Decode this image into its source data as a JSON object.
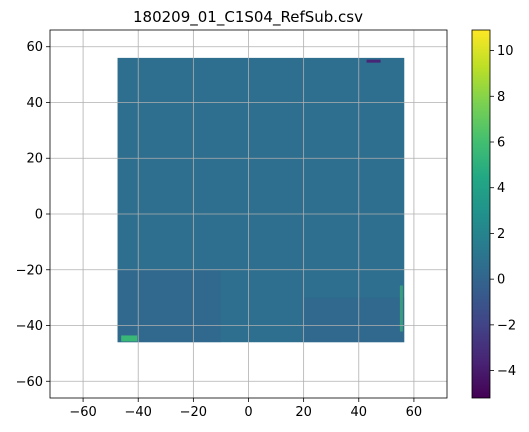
{
  "chart_data": {
    "type": "heatmap",
    "title": "180209_01_C1S04_RefSub.csv",
    "xlabel": "",
    "ylabel": "",
    "xlim": [
      -72,
      72
    ],
    "ylim": [
      -66,
      66
    ],
    "x_ticks": [
      -60,
      -40,
      -20,
      0,
      20,
      40,
      60
    ],
    "y_ticks": [
      -60,
      -40,
      -20,
      0,
      20,
      40,
      60
    ],
    "grid": true,
    "colormap": "viridis",
    "colorbar": {
      "range": [
        -5.2,
        10.9
      ],
      "ticks": [
        -4,
        -2,
        0,
        2,
        4,
        6,
        8,
        10
      ]
    },
    "data_region": {
      "x_range": [
        -47.5,
        56.5
      ],
      "y_range": [
        -46,
        56
      ],
      "dominant_value": 0.6
    },
    "features": [
      {
        "kind": "hot-spot",
        "x": -44,
        "y": -45,
        "value": 5.5
      },
      {
        "kind": "cold-spot",
        "x": 45,
        "y": 55,
        "value": -3.5
      },
      {
        "kind": "edge-highlight",
        "x": 56,
        "y": -40,
        "value": 6
      }
    ]
  }
}
